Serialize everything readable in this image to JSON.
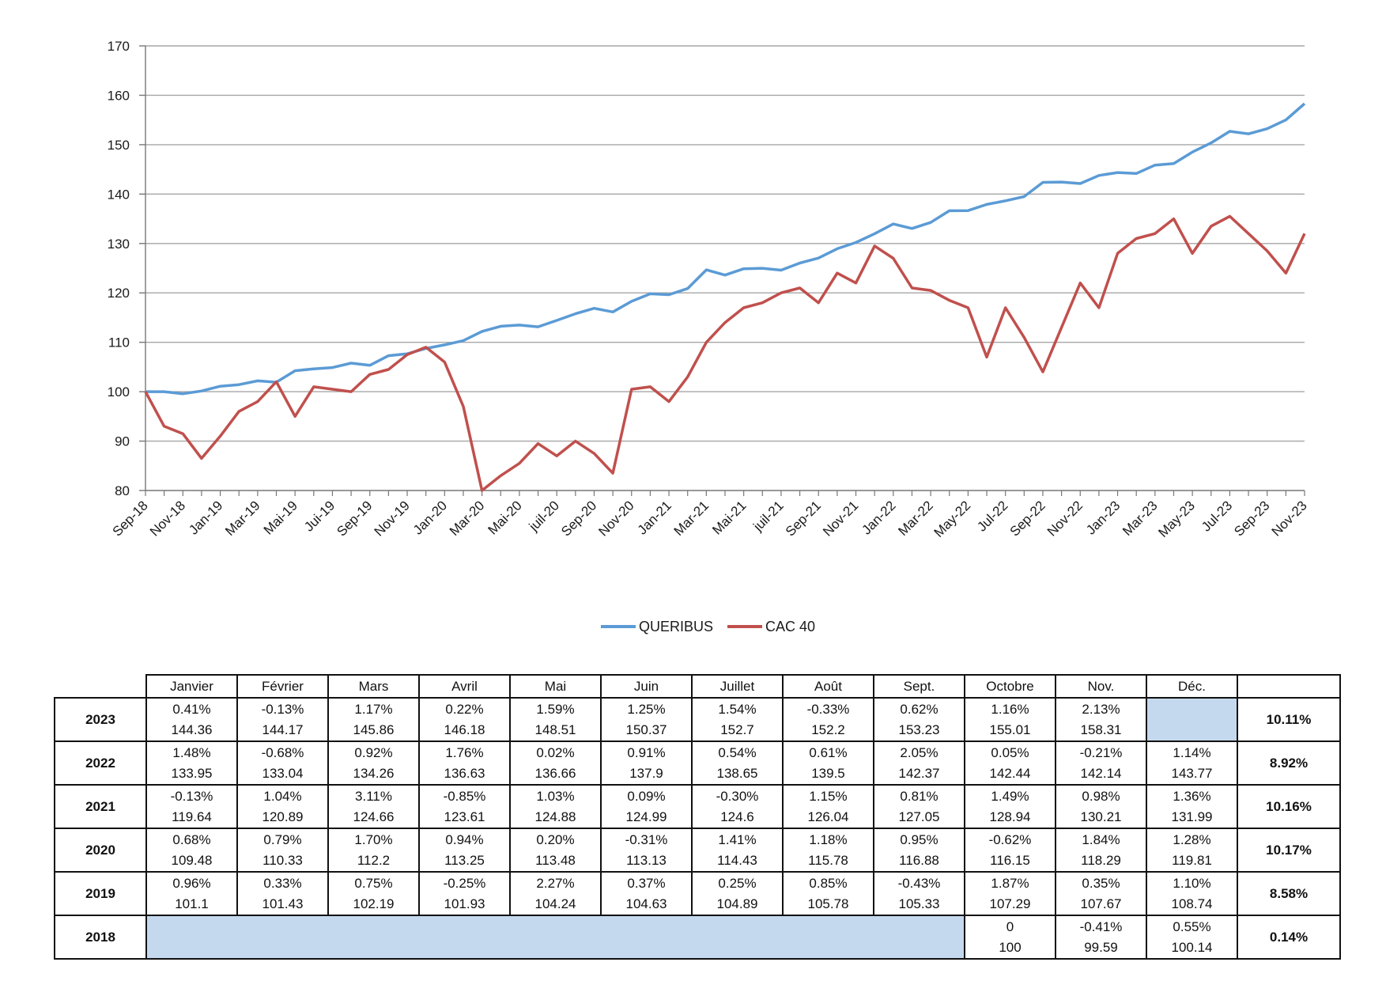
{
  "colors": {
    "queribus": "#5b9bd5",
    "cac40": "#c0504d",
    "grid": "#a6a6a6",
    "shade": "#c5d9ee"
  },
  "chart_data": {
    "type": "line",
    "x": [
      "Sep-18",
      "Oct-18",
      "Nov-18",
      "Dec-18",
      "Jan-19",
      "Feb-19",
      "Mar-19",
      "Apr-19",
      "Mai-19",
      "Jun-19",
      "Jui-19",
      "Aug-19",
      "Sep-19",
      "Oct-19",
      "Nov-19",
      "Dec-19",
      "Jan-20",
      "Feb-20",
      "Mar-20",
      "Apr-20",
      "Mai-20",
      "Jun-20",
      "juil-20",
      "Aug-20",
      "Sep-20",
      "Oct-20",
      "Nov-20",
      "Dec-20",
      "Jan-21",
      "Feb-21",
      "Mar-21",
      "Apr-21",
      "Mai-21",
      "Jun-21",
      "juil-21",
      "Aug-21",
      "Sep-21",
      "Oct-21",
      "Nov-21",
      "Dec-21",
      "Jan-22",
      "Feb-22",
      "Mar-22",
      "Apr-22",
      "May-22",
      "Jun-22",
      "Jul-22",
      "Aug-22",
      "Sep-22",
      "Oct-22",
      "Nov-22",
      "Dec-22",
      "Jan-23",
      "Feb-23",
      "Mar-23",
      "Apr-23",
      "May-23",
      "Jun-23",
      "Jul-23",
      "Aug-23",
      "Sep-23",
      "Oct-23",
      "Nov-23"
    ],
    "tick_labels": [
      "Sep-18",
      "Nov-18",
      "Jan-19",
      "Mar-19",
      "Mai-19",
      "Jui-19",
      "Sep-19",
      "Nov-19",
      "Jan-20",
      "Mar-20",
      "Mai-20",
      "juil-20",
      "Sep-20",
      "Nov-20",
      "Jan-21",
      "Mar-21",
      "Mai-21",
      "juil-21",
      "Sep-21",
      "Nov-21",
      "Jan-22",
      "Mar-22",
      "May-22",
      "Jul-22",
      "Sep-22",
      "Nov-22",
      "Jan-23",
      "Mar-23",
      "May-23",
      "Jul-23",
      "Sep-23",
      "Nov-23"
    ],
    "y_ticks": [
      "80",
      "90",
      "100",
      "110",
      "120",
      "130",
      "140",
      "150",
      "160",
      "170"
    ],
    "ylim": [
      80,
      170
    ],
    "grid": true,
    "legend_position": "bottom-center",
    "series": [
      {
        "name": "QUERIBUS",
        "color": "#5b9bd5",
        "values": [
          100,
          100,
          99.59,
          100.14,
          101.1,
          101.43,
          102.19,
          101.93,
          104.24,
          104.63,
          104.89,
          105.78,
          105.33,
          107.29,
          107.67,
          108.74,
          109.48,
          110.33,
          112.2,
          113.25,
          113.48,
          113.13,
          114.43,
          115.78,
          116.88,
          116.15,
          118.29,
          119.81,
          119.64,
          120.89,
          124.66,
          123.61,
          124.88,
          124.99,
          124.6,
          126.04,
          127.05,
          128.94,
          130.21,
          131.99,
          133.95,
          133.04,
          134.26,
          136.63,
          136.66,
          137.9,
          138.65,
          139.5,
          142.37,
          142.44,
          142.14,
          143.77,
          144.36,
          144.17,
          145.86,
          146.18,
          148.51,
          150.37,
          152.7,
          152.2,
          153.23,
          155.01,
          158.31
        ]
      },
      {
        "name": "CAC 40",
        "color": "#c0504d",
        "values": [
          100,
          93,
          91.5,
          86.5,
          91,
          96,
          98,
          102,
          95,
          101,
          100.5,
          100,
          103.5,
          104.5,
          107.5,
          109,
          106,
          97,
          80,
          83,
          85.5,
          89.5,
          87,
          90,
          87.5,
          83.5,
          100.5,
          101,
          98,
          103,
          110,
          114,
          117,
          118,
          120,
          121,
          118,
          124,
          122,
          129.5,
          127,
          121,
          120.5,
          118.5,
          117,
          107,
          117,
          111,
          104,
          113,
          122,
          117,
          128,
          131,
          132,
          135,
          128,
          133.5,
          135.5,
          132,
          128.5,
          124,
          132
        ]
      }
    ]
  },
  "table": {
    "months": [
      "Janvier",
      "Février",
      "Mars",
      "Avril",
      "Mai",
      "Juin",
      "Juillet",
      "Août",
      "Sept.",
      "Octobre",
      "Nov.",
      "Déc."
    ],
    "rows": [
      {
        "year": "2023",
        "total": "10.11%",
        "cells": [
          [
            "0.41%",
            "144.36"
          ],
          [
            "-0.13%",
            "144.17"
          ],
          [
            "1.17%",
            "145.86"
          ],
          [
            "0.22%",
            "146.18"
          ],
          [
            "1.59%",
            "148.51"
          ],
          [
            "1.25%",
            "150.37"
          ],
          [
            "1.54%",
            "152.7"
          ],
          [
            "-0.33%",
            "152.2"
          ],
          [
            "0.62%",
            "153.23"
          ],
          [
            "1.16%",
            "155.01"
          ],
          [
            "2.13%",
            "158.31"
          ],
          [
            "",
            ""
          ]
        ]
      },
      {
        "year": "2022",
        "total": "8.92%",
        "cells": [
          [
            "1.48%",
            "133.95"
          ],
          [
            "-0.68%",
            "133.04"
          ],
          [
            "0.92%",
            "134.26"
          ],
          [
            "1.76%",
            "136.63"
          ],
          [
            "0.02%",
            "136.66"
          ],
          [
            "0.91%",
            "137.9"
          ],
          [
            "0.54%",
            "138.65"
          ],
          [
            "0.61%",
            "139.5"
          ],
          [
            "2.05%",
            "142.37"
          ],
          [
            "0.05%",
            "142.44"
          ],
          [
            "-0.21%",
            "142.14"
          ],
          [
            "1.14%",
            "143.77"
          ]
        ]
      },
      {
        "year": "2021",
        "total": "10.16%",
        "cells": [
          [
            "-0.13%",
            "119.64"
          ],
          [
            "1.04%",
            "120.89"
          ],
          [
            "3.11%",
            "124.66"
          ],
          [
            "-0.85%",
            "123.61"
          ],
          [
            "1.03%",
            "124.88"
          ],
          [
            "0.09%",
            "124.99"
          ],
          [
            "-0.30%",
            "124.6"
          ],
          [
            "1.15%",
            "126.04"
          ],
          [
            "0.81%",
            "127.05"
          ],
          [
            "1.49%",
            "128.94"
          ],
          [
            "0.98%",
            "130.21"
          ],
          [
            "1.36%",
            "131.99"
          ]
        ]
      },
      {
        "year": "2020",
        "total": "10.17%",
        "cells": [
          [
            "0.68%",
            "109.48"
          ],
          [
            "0.79%",
            "110.33"
          ],
          [
            "1.70%",
            "112.2"
          ],
          [
            "0.94%",
            "113.25"
          ],
          [
            "0.20%",
            "113.48"
          ],
          [
            "-0.31%",
            "113.13"
          ],
          [
            "1.41%",
            "114.43"
          ],
          [
            "1.18%",
            "115.78"
          ],
          [
            "0.95%",
            "116.88"
          ],
          [
            "-0.62%",
            "116.15"
          ],
          [
            "1.84%",
            "118.29"
          ],
          [
            "1.28%",
            "119.81"
          ]
        ]
      },
      {
        "year": "2019",
        "total": "8.58%",
        "cells": [
          [
            "0.96%",
            "101.1"
          ],
          [
            "0.33%",
            "101.43"
          ],
          [
            "0.75%",
            "102.19"
          ],
          [
            "-0.25%",
            "101.93"
          ],
          [
            "2.27%",
            "104.24"
          ],
          [
            "0.37%",
            "104.63"
          ],
          [
            "0.25%",
            "104.89"
          ],
          [
            "0.85%",
            "105.78"
          ],
          [
            "-0.43%",
            "105.33"
          ],
          [
            "1.87%",
            "107.29"
          ],
          [
            "0.35%",
            "107.67"
          ],
          [
            "1.10%",
            "108.74"
          ]
        ]
      },
      {
        "year": "2018",
        "total": "0.14%",
        "cells": [
          [
            "",
            ""
          ],
          [
            "",
            ""
          ],
          [
            "",
            ""
          ],
          [
            "",
            ""
          ],
          [
            "",
            ""
          ],
          [
            "",
            ""
          ],
          [
            "",
            ""
          ],
          [
            "",
            ""
          ],
          [
            "",
            ""
          ],
          [
            "0",
            "100"
          ],
          [
            "-0.41%",
            "99.59"
          ],
          [
            "0.55%",
            "100.14"
          ]
        ]
      }
    ]
  }
}
